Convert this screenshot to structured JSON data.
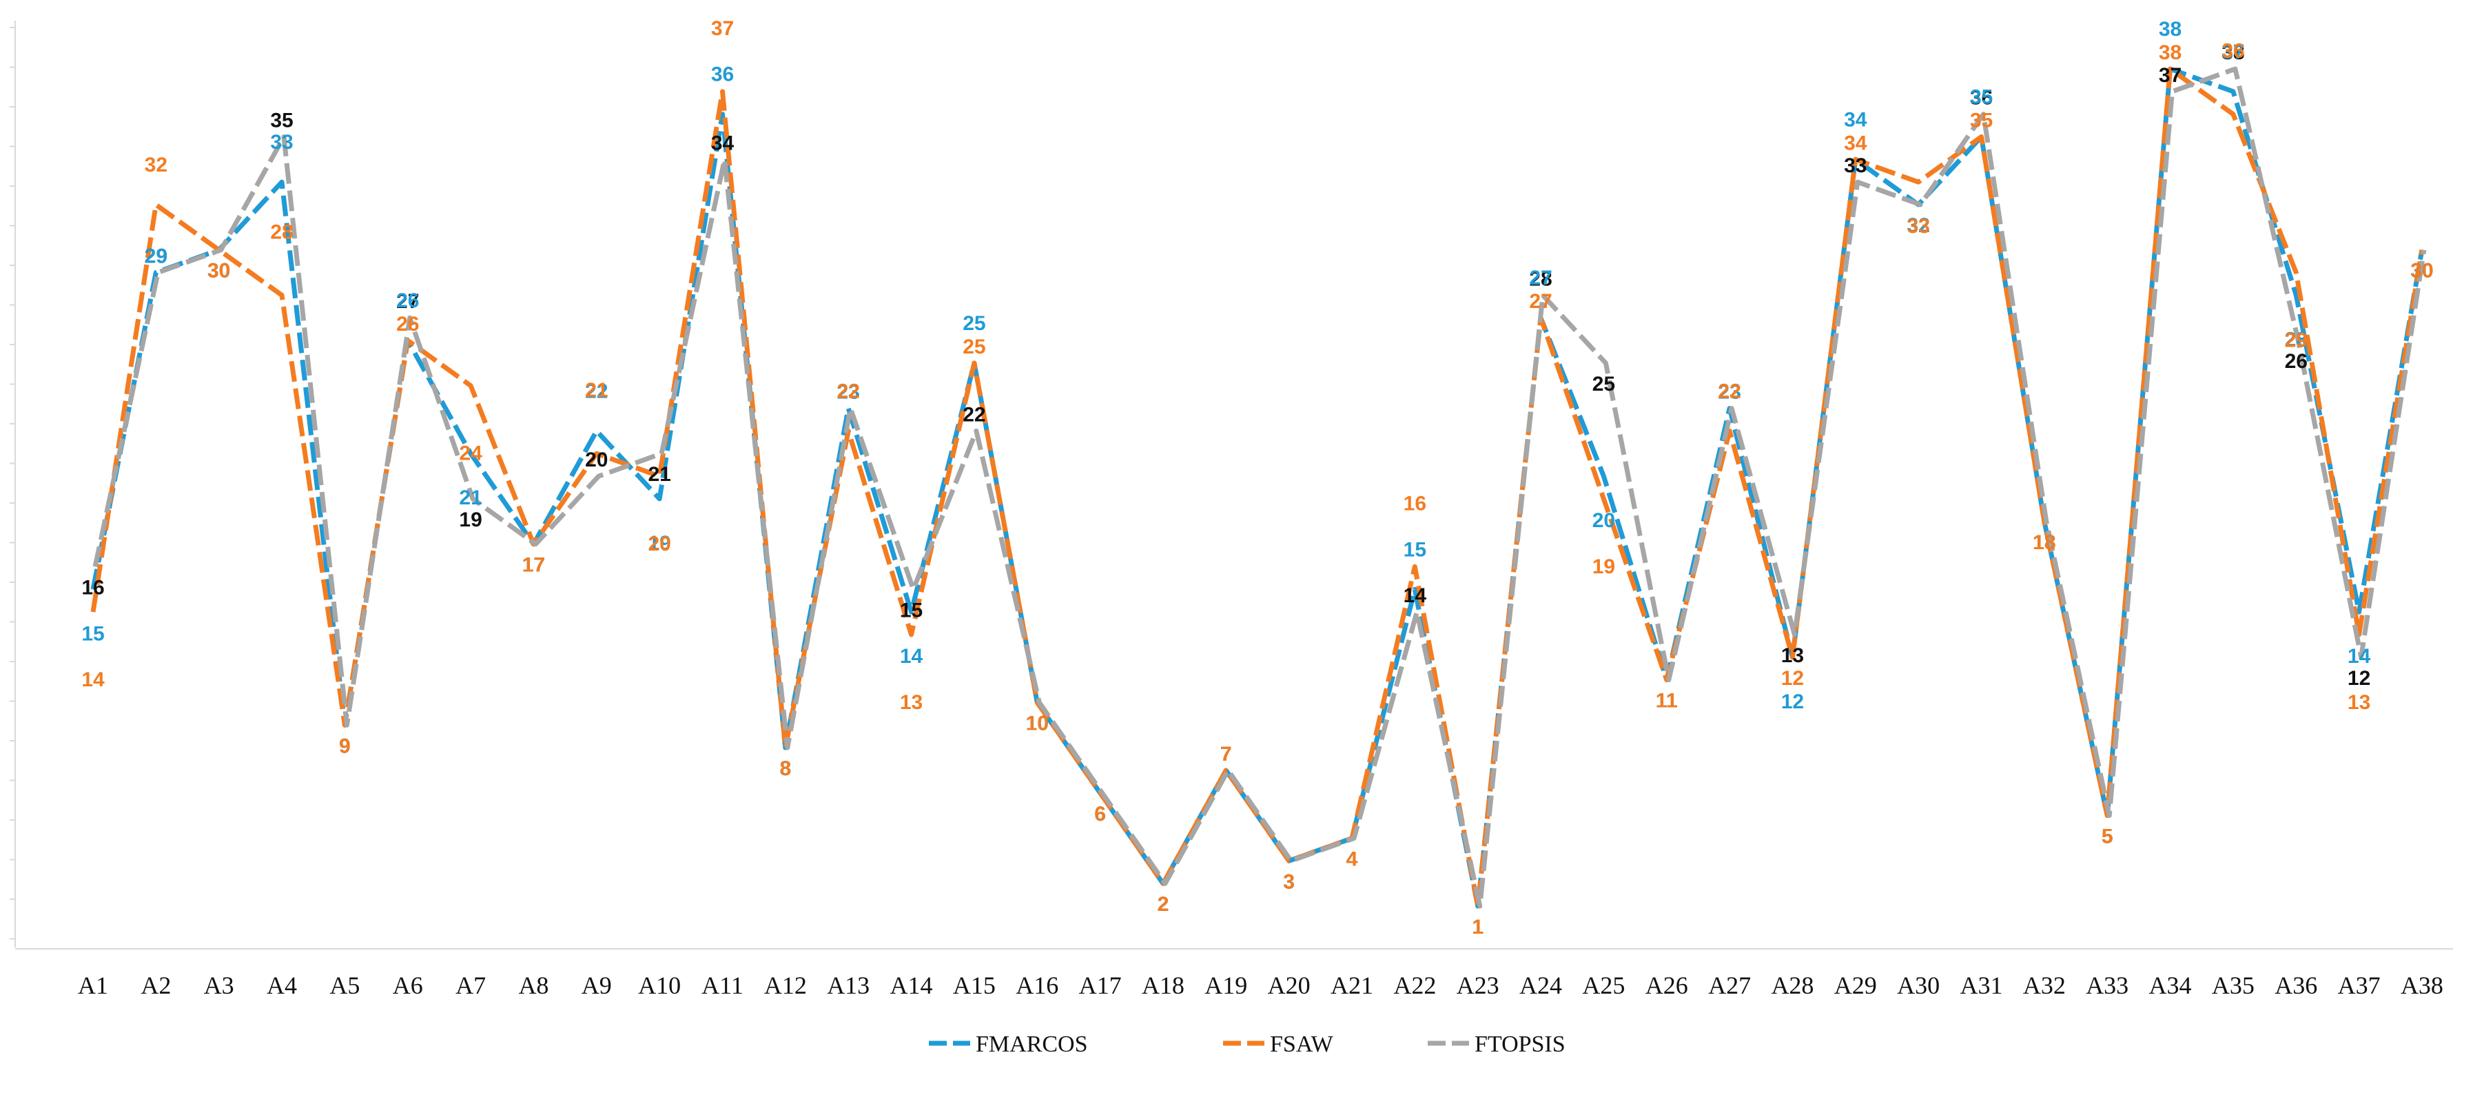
{
  "chart_data": {
    "type": "line",
    "title": "",
    "xlabel": "",
    "ylabel": "",
    "ylim": [
      1,
      38
    ],
    "y_inverted": true,
    "grid": false,
    "legend_position": "bottom-center",
    "categories": [
      "A1",
      "A2",
      "A3",
      "A4",
      "A5",
      "A6",
      "A7",
      "A8",
      "A9",
      "A10",
      "A11",
      "A12",
      "A13",
      "A14",
      "A15",
      "A16",
      "A17",
      "A18",
      "A19",
      "A20",
      "A21",
      "A22",
      "A23",
      "A24",
      "A25",
      "A26",
      "A27",
      "A28",
      "A29",
      "A30",
      "A31",
      "A32",
      "A33",
      "A34",
      "A35",
      "A36",
      "A37",
      "A38"
    ],
    "series": [
      {
        "name": "FMARCOS",
        "color": "#1f9bd7",
        "label_color": "#1f9bd7",
        "values": [
          15,
          29,
          30,
          33,
          9,
          26,
          21,
          17,
          22,
          19,
          36,
          8,
          23,
          14,
          25,
          10,
          6,
          2,
          7,
          3,
          4,
          15,
          1,
          27,
          20,
          11,
          23,
          12,
          34,
          32,
          35,
          18,
          5,
          38,
          37,
          28,
          14,
          30
        ]
      },
      {
        "name": "FSAW",
        "color": "#f47c20",
        "label_color": "#f47c20",
        "values": [
          14,
          32,
          30,
          28,
          9,
          26,
          24,
          17,
          21,
          20,
          37,
          8,
          22,
          13,
          25,
          10,
          6,
          2,
          7,
          3,
          4,
          16,
          1,
          27,
          19,
          11,
          22,
          12,
          34,
          33,
          35,
          18,
          5,
          38,
          36,
          29,
          13,
          30
        ]
      },
      {
        "name": "FTOPSIS",
        "color": "#a6a6a6",
        "label_color": "#111111",
        "values": [
          16,
          29,
          30,
          35,
          9,
          27,
          19,
          17,
          20,
          21,
          34,
          8,
          23,
          15,
          22,
          10,
          6,
          2,
          7,
          3,
          4,
          14,
          1,
          28,
          25,
          11,
          23,
          13,
          33,
          32,
          36,
          18,
          5,
          37,
          38,
          26,
          12,
          30
        ]
      }
    ]
  }
}
